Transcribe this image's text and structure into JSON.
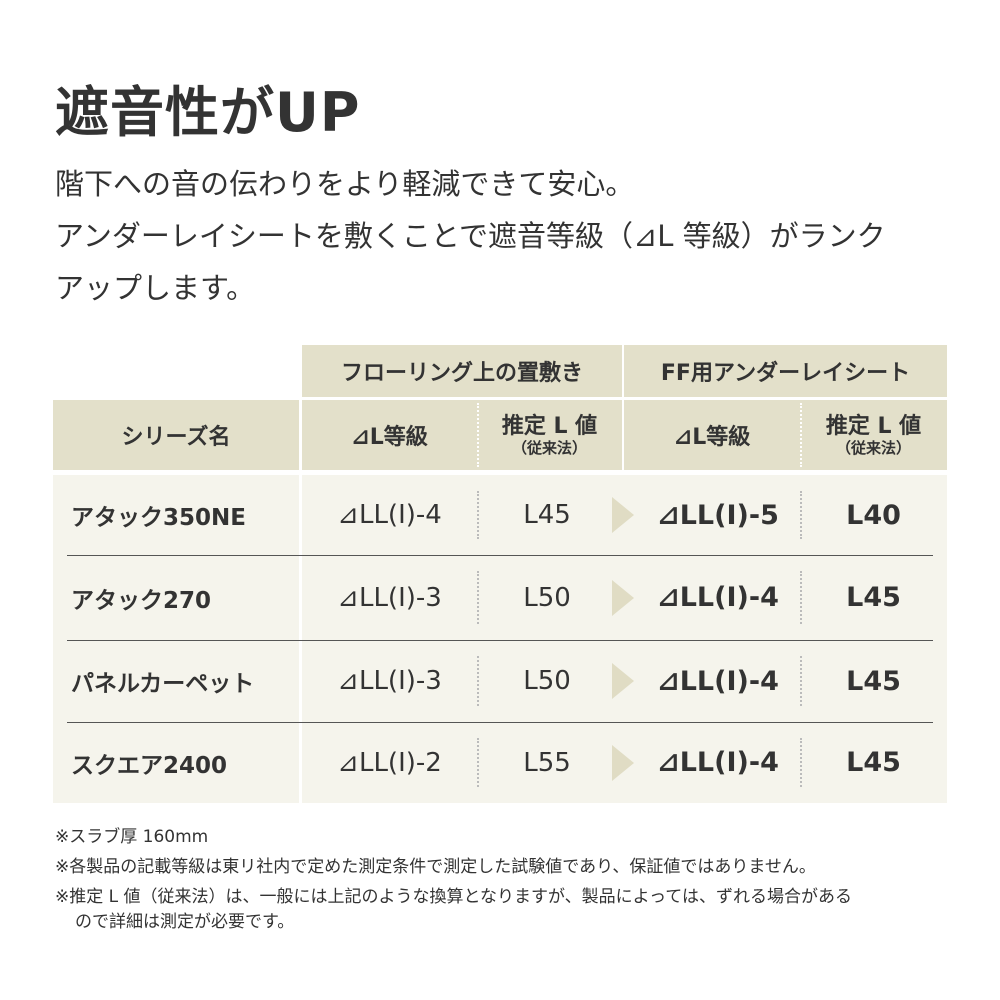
{
  "title": "遮音性がUP",
  "lead": [
    "階下への音の伝わりをより軽減できて安心。",
    "アンダーレイシートを敷くことで遮音等級（⊿L 等級）がランク",
    "アップします。"
  ],
  "table": {
    "group_headers": [
      "フローリング上の置敷き",
      "FF用アンダーレイシート"
    ],
    "headers": {
      "name": "シリーズ名",
      "grade1": "⊿L等級",
      "lval1": "推定 L 値",
      "lval1_sub": "（従来法）",
      "grade2": "⊿L等級",
      "lval2": "推定 L 値",
      "lval2_sub": "（従来法）"
    },
    "rows": [
      {
        "name": "アタック350NE",
        "grade1": "⊿LL(I)-4",
        "lval1": "L45",
        "grade2": "⊿LL(I)-5",
        "lval2": "L40"
      },
      {
        "name": "アタック270",
        "grade1": "⊿LL(I)-3",
        "lval1": "L50",
        "grade2": "⊿LL(I)-4",
        "lval2": "L45"
      },
      {
        "name": "パネルカーペット",
        "grade1": "⊿LL(I)-3",
        "lval1": "L50",
        "grade2": "⊿LL(I)-4",
        "lval2": "L45"
      },
      {
        "name": "スクエア2400",
        "grade1": "⊿LL(I)-2",
        "lval1": "L55",
        "grade2": "⊿LL(I)-4",
        "lval2": "L45"
      }
    ]
  },
  "notes": [
    "※スラブ厚 160mm",
    "※各製品の記載等級は東リ社内で定めた測定条件で測定した試験値であり、保証値ではありません。",
    "※推定 L 値（従来法）は、一般には上記のような換算となりますが、製品によっては、ずれる場合がある",
    "ので詳細は測定が必要です。"
  ],
  "colors": {
    "header_bg": "#e3e0ca",
    "body_bg": "#f5f4ec",
    "arrow": "#e0dcc4",
    "text": "#333333"
  }
}
